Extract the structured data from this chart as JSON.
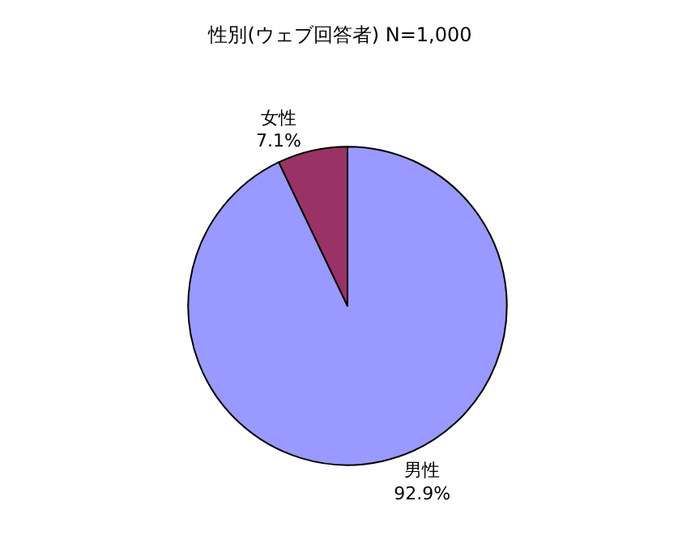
{
  "chart_data": {
    "type": "pie",
    "title": "性別(ウェブ回答者) N=1,000",
    "categories": [
      "男性",
      "女性"
    ],
    "values": [
      92.9,
      7.1
    ],
    "value_labels": [
      "92.9%",
      "7.1%"
    ],
    "colors": [
      "#9999ff",
      "#993366"
    ],
    "legend": false
  }
}
